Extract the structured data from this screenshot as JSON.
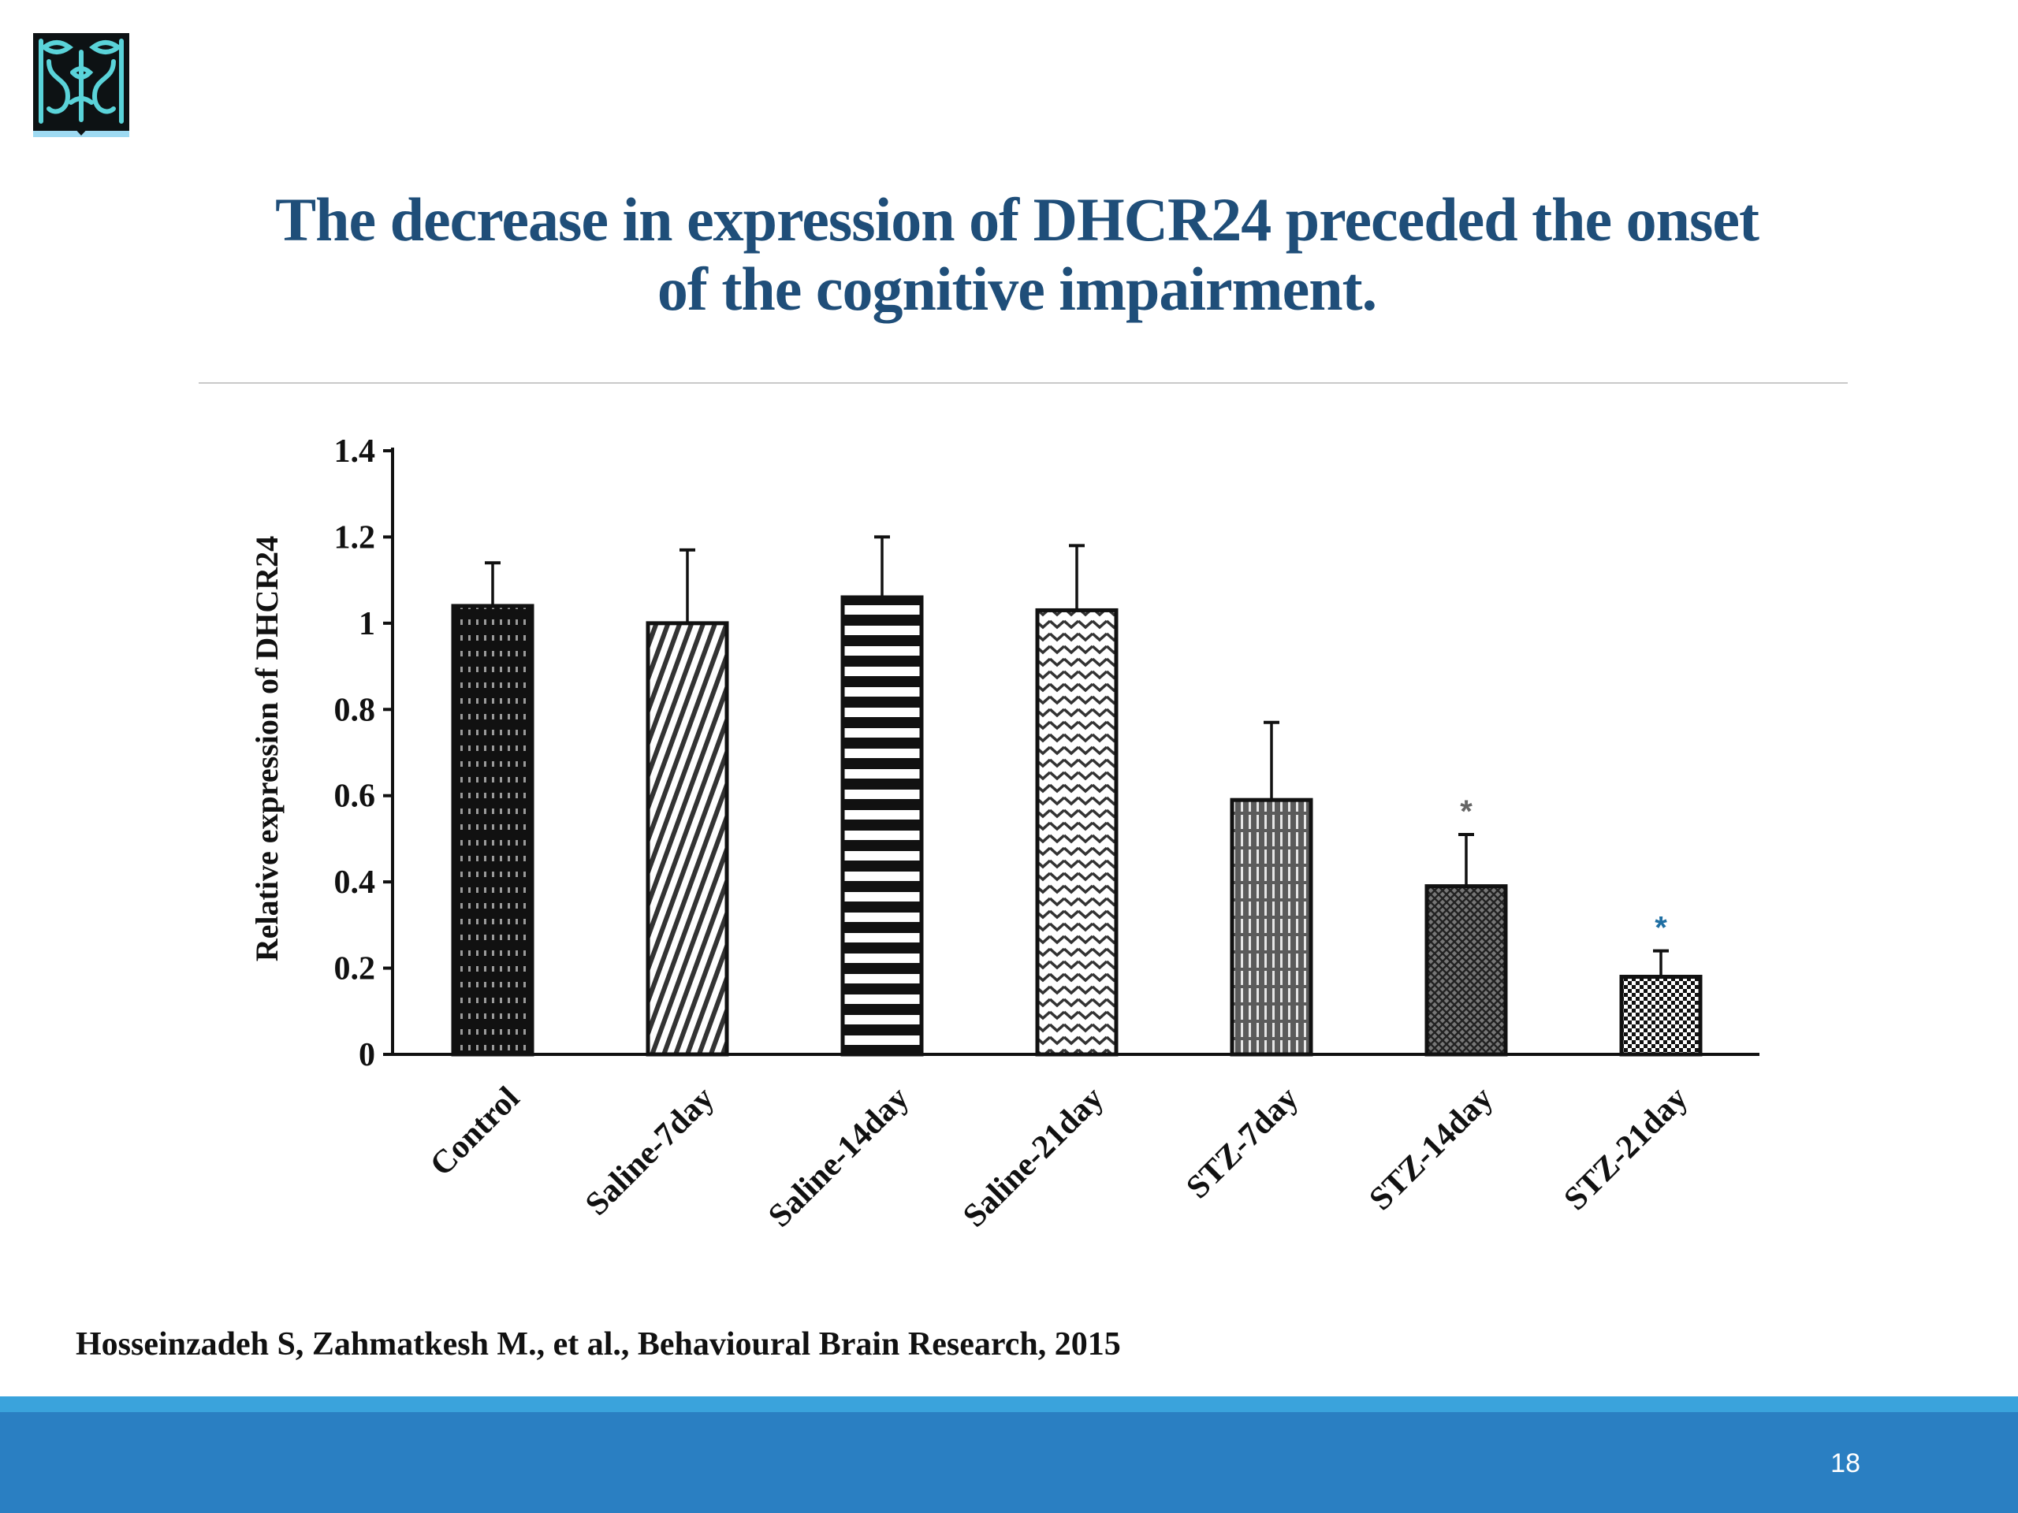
{
  "slide": {
    "title_line1": "The decrease in expression of DHCR24 preceded the onset",
    "title_line2": "of the cognitive impairment.",
    "citation": "Hosseinzadeh S, Zahmatkesh M., et al., Behavioural Brain Research, 2015",
    "page_number": "18",
    "title_color": "#1f4e79",
    "footer_color": "#2a7fc2",
    "logo_icon": "university-logo-icon"
  },
  "chart_data": {
    "type": "bar",
    "title": "",
    "xlabel": "",
    "ylabel": "Relative expression of DHCR24",
    "ylim": [
      0,
      1.4
    ],
    "yticks": [
      0,
      0.2,
      0.4,
      0.6,
      0.8,
      1,
      1.2,
      1.4
    ],
    "ytick_labels": [
      "0",
      "0.2",
      "0.4",
      "0.6",
      "0.8",
      "1",
      "1.2",
      "1.4"
    ],
    "categories": [
      "Control",
      "Saline-7day",
      "Saline-14day",
      "Saline-21day",
      "STZ-7day",
      "STZ-14day",
      "STZ-21day"
    ],
    "values": [
      1.04,
      1.0,
      1.06,
      1.03,
      0.59,
      0.39,
      0.18
    ],
    "error_upper": [
      1.14,
      1.17,
      1.2,
      1.18,
      0.77,
      0.51,
      0.24
    ],
    "significance": [
      "",
      "",
      "",
      "",
      "",
      "*",
      "*"
    ],
    "patterns": [
      "dark-dotted",
      "diagonal-stripes",
      "horizontal-stripes",
      "zigzag",
      "vertical-stripes",
      "crosshatch",
      "checker"
    ],
    "grid": false,
    "legend": "none"
  }
}
